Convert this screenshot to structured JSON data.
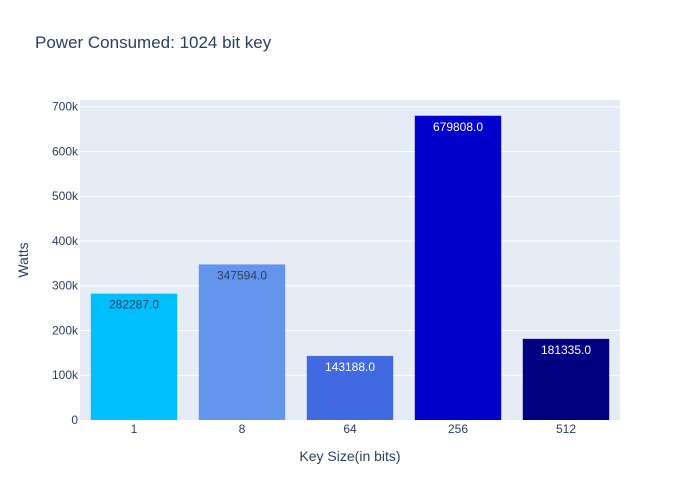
{
  "chart_data": {
    "type": "bar",
    "title": "Power Consumed: 1024 bit key",
    "xlabel": "Key Size(in bits)",
    "ylabel": "Watts",
    "categories": [
      "1",
      "8",
      "64",
      "256",
      "512"
    ],
    "values": [
      282287.0,
      347594.0,
      143188.0,
      679808.0,
      181335.0
    ],
    "data_labels": [
      "282287.0",
      "347594.0",
      "143188.0",
      "679808.0",
      "181335.0"
    ],
    "bar_colors": [
      "#00bfff",
      "#6495ed",
      "#4169e1",
      "#0000cd",
      "#000080"
    ],
    "label_colors": [
      "#2a3f5f",
      "#2a3f5f",
      "#ffffff",
      "#ffffff",
      "#ffffff"
    ],
    "ylim": [
      0,
      715000
    ],
    "yticks": [
      0,
      100000,
      200000,
      300000,
      400000,
      500000,
      600000,
      700000
    ],
    "ytick_labels": [
      "0",
      "100k",
      "200k",
      "300k",
      "400k",
      "500k",
      "600k",
      "700k"
    ],
    "grid": true,
    "plot_bgcolor": "#e5ecf6",
    "legend": "none"
  }
}
